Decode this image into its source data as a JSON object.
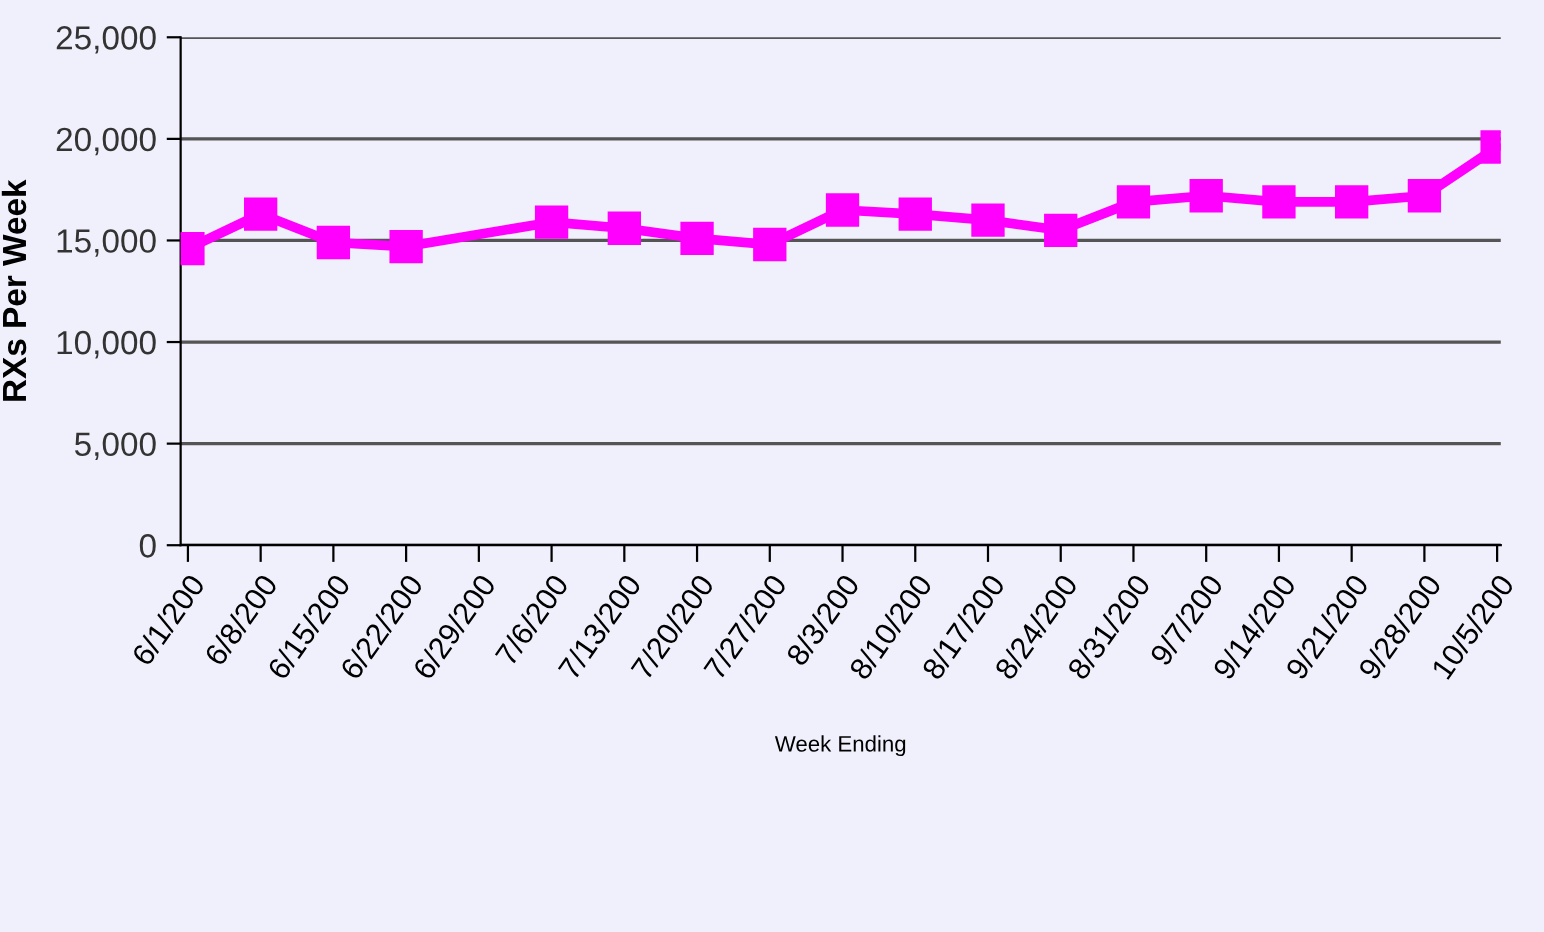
{
  "chart_data": {
    "type": "line",
    "xlabel": "Week Ending",
    "ylabel": "RXs Per Week",
    "categories": [
      "6/1/200",
      "6/8/200",
      "6/15/200",
      "6/22/200",
      "6/29/200",
      "7/6/200",
      "7/13/200",
      "7/20/200",
      "7/27/200",
      "8/3/200",
      "8/10/200",
      "8/17/200",
      "8/24/200",
      "8/31/200",
      "9/7/200",
      "9/14/200",
      "9/21/200",
      "9/28/200",
      "10/5/200"
    ],
    "series": [
      {
        "color": "#ff00ff",
        "values": [
          14600,
          16300,
          14900,
          14700,
          null,
          15900,
          15600,
          15100,
          14800,
          16500,
          16300,
          16000,
          15500,
          16900,
          17200,
          16900,
          16900,
          17200,
          19600
        ]
      }
    ],
    "ylim": [
      0,
      25000
    ],
    "yticks": [
      {
        "value": 0,
        "label": "0"
      },
      {
        "value": 5000,
        "label": "5,000"
      },
      {
        "value": 10000,
        "label": "10,000"
      },
      {
        "value": 15000,
        "label": "15,000"
      },
      {
        "value": 20000,
        "label": "20,000"
      },
      {
        "value": 25000,
        "label": "25,000"
      }
    ],
    "grid": "y",
    "marker": "square",
    "line_style": "solid"
  }
}
